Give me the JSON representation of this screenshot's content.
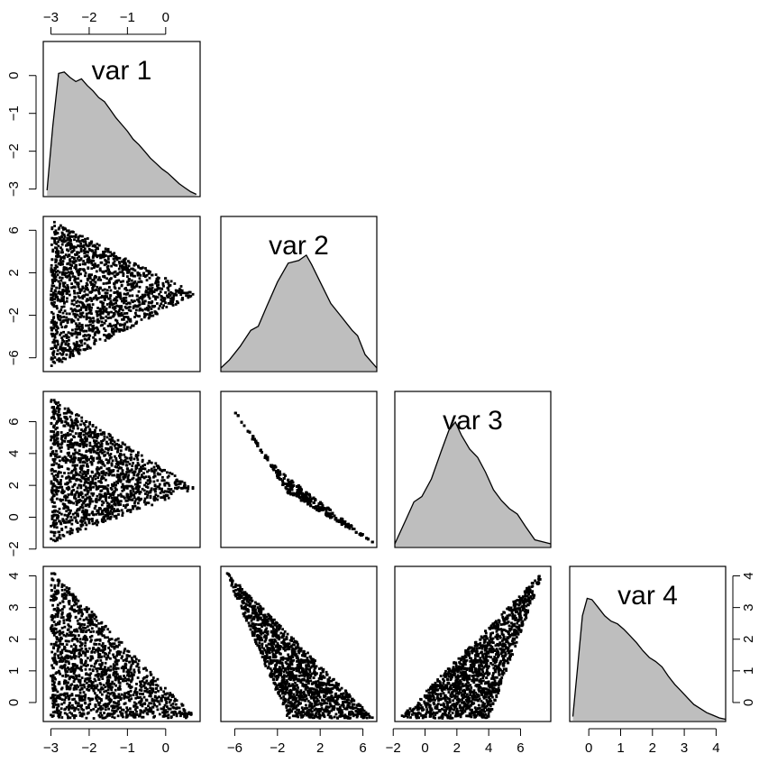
{
  "chart_data": [
    {
      "type": "area",
      "panel": "1,1",
      "title": "var 1",
      "xlim": [
        -3.2,
        0.9
      ],
      "ylim": [
        -3.2,
        0.9
      ],
      "density": {
        "x": [
          -3.1,
          -2.95,
          -2.8,
          -2.65,
          -2.5,
          -2.35,
          -2.2,
          -2.05,
          -1.9,
          -1.75,
          -1.6,
          -1.45,
          -1.3,
          -1.15,
          -1.0,
          -0.85,
          -0.7,
          -0.55,
          -0.4,
          -0.25,
          -0.1,
          0.05,
          0.2,
          0.35,
          0.5,
          0.65,
          0.8
        ],
        "y": [
          0.04,
          0.52,
          0.91,
          0.92,
          0.88,
          0.85,
          0.87,
          0.82,
          0.78,
          0.73,
          0.7,
          0.64,
          0.58,
          0.53,
          0.48,
          0.42,
          0.38,
          0.33,
          0.28,
          0.24,
          0.2,
          0.17,
          0.13,
          0.09,
          0.06,
          0.03,
          0.01
        ]
      }
    },
    {
      "type": "area",
      "panel": "2,2",
      "title": "var 2",
      "xlim": [
        -7.3,
        7.3
      ],
      "density": {
        "x": [
          -7.3,
          -6.5,
          -5.5,
          -4.5,
          -3.8,
          -3.0,
          -2.0,
          -1.0,
          0.0,
          0.7,
          1.2,
          2.0,
          3.0,
          4.0,
          5.0,
          5.5,
          6.2,
          7.3
        ],
        "y": [
          0.02,
          0.08,
          0.18,
          0.3,
          0.33,
          0.48,
          0.66,
          0.8,
          0.82,
          0.86,
          0.79,
          0.66,
          0.5,
          0.4,
          0.3,
          0.26,
          0.12,
          0.02
        ]
      }
    },
    {
      "type": "area",
      "panel": "3,3",
      "title": "var 3",
      "xlim": [
        -1.9,
        7.9
      ],
      "density": {
        "x": [
          -1.9,
          -1.2,
          -0.7,
          -0.2,
          0.4,
          1.0,
          1.5,
          1.9,
          2.3,
          2.8,
          3.3,
          3.8,
          4.3,
          4.8,
          5.3,
          5.8,
          6.3,
          6.9,
          7.9
        ],
        "y": [
          0.02,
          0.2,
          0.33,
          0.37,
          0.5,
          0.7,
          0.86,
          0.92,
          0.82,
          0.72,
          0.66,
          0.55,
          0.42,
          0.34,
          0.28,
          0.24,
          0.15,
          0.05,
          0.02
        ]
      }
    },
    {
      "type": "area",
      "panel": "4,4",
      "title": "var 4",
      "xlim": [
        -0.6,
        4.3
      ],
      "density": {
        "x": [
          -0.5,
          -0.35,
          -0.2,
          -0.05,
          0.1,
          0.3,
          0.5,
          0.7,
          0.9,
          1.1,
          1.3,
          1.5,
          1.7,
          1.9,
          2.1,
          2.3,
          2.5,
          2.7,
          2.9,
          3.1,
          3.3,
          3.5,
          3.7,
          3.9,
          4.1,
          4.3
        ],
        "y": [
          0.03,
          0.4,
          0.78,
          0.91,
          0.9,
          0.84,
          0.78,
          0.74,
          0.72,
          0.68,
          0.63,
          0.58,
          0.52,
          0.47,
          0.44,
          0.4,
          0.33,
          0.27,
          0.22,
          0.17,
          0.12,
          0.09,
          0.06,
          0.04,
          0.02,
          0.01
        ]
      }
    },
    {
      "type": "scatter",
      "panel": "2,1",
      "xlabel": "var 1",
      "ylabel": "var 2",
      "xlim": [
        -3.2,
        0.9
      ],
      "ylim": [
        -7.3,
        7.3
      ],
      "region": [
        [
          -3.0,
          7.0
        ],
        [
          -3.0,
          -7.0
        ],
        [
          0.8,
          0.0
        ]
      ],
      "points": 1500
    },
    {
      "type": "scatter",
      "panel": "3,1",
      "xlabel": "var 1",
      "ylabel": "var 3",
      "xlim": [
        -3.2,
        0.9
      ],
      "ylim": [
        -1.9,
        7.9
      ],
      "region": [
        [
          -3.0,
          7.5
        ],
        [
          -3.0,
          -1.6
        ],
        [
          0.8,
          1.8
        ]
      ],
      "points": 1500
    },
    {
      "type": "scatter",
      "panel": "4,1",
      "xlabel": "var 1",
      "ylabel": "var 4",
      "xlim": [
        -3.2,
        0.9
      ],
      "ylim": [
        -0.6,
        4.3
      ],
      "region": [
        [
          -3.0,
          4.2
        ],
        [
          -3.0,
          -0.5
        ],
        [
          0.8,
          -0.5
        ]
      ],
      "points": 1500
    },
    {
      "type": "scatter",
      "panel": "3,2",
      "xlabel": "var 2",
      "ylabel": "var 3",
      "xlim": [
        -7.3,
        7.3
      ],
      "ylim": [
        -1.9,
        7.9
      ],
      "region": [
        [
          -7.0,
          7.6
        ],
        [
          -2.0,
          3.0
        ],
        [
          7.0,
          -1.6
        ],
        [
          -1.0,
          1.5
        ]
      ],
      "points": 1500
    },
    {
      "type": "scatter",
      "panel": "4,2",
      "xlabel": "var 2",
      "ylabel": "var 4",
      "xlim": [
        -7.3,
        7.3
      ],
      "ylim": [
        -0.6,
        4.3
      ],
      "region": [
        [
          -7.0,
          4.2
        ],
        [
          -1.0,
          -0.5
        ],
        [
          7.0,
          -0.5
        ]
      ],
      "points": 1500
    },
    {
      "type": "scatter",
      "panel": "4,3",
      "xlabel": "var 3",
      "ylabel": "var 4",
      "xlim": [
        -1.9,
        7.9
      ],
      "ylim": [
        -0.6,
        4.3
      ],
      "region": [
        [
          -1.6,
          -0.5
        ],
        [
          7.5,
          4.2
        ],
        [
          4.0,
          -0.5
        ]
      ],
      "points": 1500
    }
  ],
  "axes": {
    "top_ticks": [
      "−3",
      "−2",
      "−1",
      "0"
    ],
    "top_ticks_vals": [
      -3,
      -2,
      -1,
      0
    ],
    "left_ticks_1": [
      "0",
      "−1",
      "−2",
      "−3"
    ],
    "left_ticks_1_vals": [
      0,
      -1,
      -2,
      -3
    ],
    "left_ticks_2": [
      "6",
      "2",
      "−2",
      "−6"
    ],
    "left_ticks_2_vals": [
      6,
      2,
      -2,
      -6
    ],
    "left_ticks_3": [
      "6",
      "4",
      "2",
      "0",
      "−2"
    ],
    "left_ticks_3_vals": [
      6,
      4,
      2,
      0,
      -2
    ],
    "left_ticks_4": [
      "4",
      "3",
      "2",
      "1",
      "0"
    ],
    "left_ticks_4_vals": [
      4,
      3,
      2,
      1,
      0
    ],
    "bottom_ticks_1": [
      "−3",
      "−2",
      "−1",
      "0"
    ],
    "bottom_ticks_1_vals": [
      -3,
      -2,
      -1,
      0
    ],
    "bottom_ticks_2": [
      "−6",
      "−2",
      "2",
      "6"
    ],
    "bottom_ticks_2_vals": [
      -6,
      -2,
      2,
      6
    ],
    "bottom_ticks_3": [
      "−2",
      "0",
      "2",
      "4",
      "6"
    ],
    "bottom_ticks_3_vals": [
      -2,
      0,
      2,
      4,
      6
    ],
    "bottom_ticks_4": [
      "0",
      "1",
      "2",
      "3",
      "4"
    ],
    "bottom_ticks_4_vals": [
      0,
      1,
      2,
      3,
      4
    ],
    "right_ticks": [
      "4",
      "3",
      "2",
      "1",
      "0"
    ],
    "right_ticks_vals": [
      4,
      3,
      2,
      1,
      0
    ]
  },
  "colors": {
    "fill": "#bebebe",
    "line": "#000000",
    "points": "#000000"
  }
}
